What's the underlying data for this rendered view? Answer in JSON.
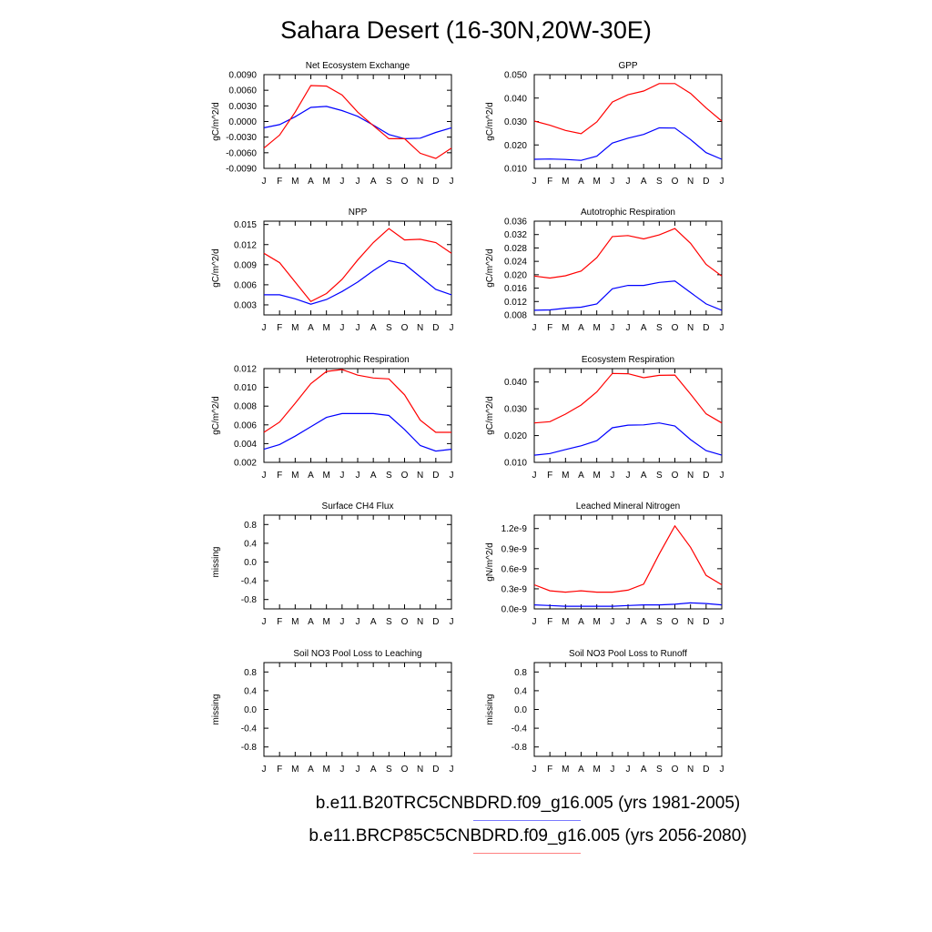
{
  "title": "Sahara Desert (16-30N,20W-30E)",
  "colors": {
    "run1": "#0000ff",
    "run2": "#ff0000"
  },
  "months": [
    "J",
    "F",
    "M",
    "A",
    "M",
    "J",
    "J",
    "A",
    "S",
    "O",
    "N",
    "D",
    "J"
  ],
  "legend": [
    {
      "label": "b.e11.B20TRC5CNBDRD.f09_g16.005 (yrs 1981-2005)",
      "color": "#7b7bff"
    },
    {
      "label": "b.e11.BRCP85C5CNBDRD.f09_g16.005 (yrs 2056-2080)",
      "color": "#ff8080"
    }
  ],
  "chart_data": [
    {
      "type": "line",
      "title": "Net Ecosystem Exchange",
      "ylabel": "gC/m^2/d",
      "ylim": [
        -0.009,
        0.009
      ],
      "yticks": [
        "0.0090",
        "0.0060",
        "0.0030",
        "0.0000",
        "-0.0030",
        "-0.0060",
        "-0.0090"
      ],
      "ytick_values": [
        0.009,
        0.006,
        0.003,
        0.0,
        -0.003,
        -0.006,
        -0.009
      ],
      "series": [
        {
          "values": [
            -0.0012,
            -0.0006,
            0.0009,
            0.0027,
            0.0029,
            0.0021,
            0.001,
            -0.0007,
            -0.0025,
            -0.0033,
            -0.0032,
            -0.0021,
            -0.0012
          ]
        },
        {
          "values": [
            -0.0051,
            -0.0026,
            0.0018,
            0.0069,
            0.0068,
            0.0051,
            0.0018,
            -0.0008,
            -0.0033,
            -0.0033,
            -0.0061,
            -0.0071,
            -0.0051
          ]
        }
      ]
    },
    {
      "type": "line",
      "title": "GPP",
      "ylabel": "gC/m^2/d",
      "ylim": [
        0.01,
        0.05
      ],
      "yticks": [
        "0.050",
        "0.040",
        "0.030",
        "0.020",
        "0.010"
      ],
      "ytick_values": [
        0.05,
        0.04,
        0.03,
        0.02,
        0.01
      ],
      "series": [
        {
          "values": [
            0.0139,
            0.014,
            0.0138,
            0.0134,
            0.0152,
            0.0208,
            0.0229,
            0.0245,
            0.0273,
            0.0272,
            0.0223,
            0.0167,
            0.0139
          ]
        },
        {
          "values": [
            0.0302,
            0.0284,
            0.0262,
            0.0248,
            0.0298,
            0.0383,
            0.0414,
            0.043,
            0.0462,
            0.0462,
            0.042,
            0.0358,
            0.0302
          ]
        }
      ]
    },
    {
      "type": "line",
      "title": "NPP",
      "ylabel": "gC/m^2/d",
      "ylim": [
        0.0015,
        0.0155
      ],
      "yticks": [
        "0.015",
        "0.012",
        "0.009",
        "0.006",
        "0.003"
      ],
      "ytick_values": [
        0.015,
        0.012,
        0.009,
        0.006,
        0.003
      ],
      "series": [
        {
          "values": [
            0.0045,
            0.0045,
            0.0039,
            0.0031,
            0.0038,
            0.005,
            0.0064,
            0.0081,
            0.0096,
            0.0091,
            0.0072,
            0.0053,
            0.0045
          ]
        },
        {
          "values": [
            0.0107,
            0.0093,
            0.0064,
            0.0035,
            0.0047,
            0.0068,
            0.0097,
            0.0123,
            0.0144,
            0.0127,
            0.0128,
            0.0123,
            0.0107
          ]
        }
      ]
    },
    {
      "type": "line",
      "title": "Autotrophic Respiration",
      "ylabel": "gC/m^2/d",
      "ylim": [
        0.008,
        0.036
      ],
      "yticks": [
        "0.036",
        "0.032",
        "0.028",
        "0.024",
        "0.020",
        "0.016",
        "0.012",
        "0.008"
      ],
      "ytick_values": [
        0.036,
        0.032,
        0.028,
        0.024,
        0.02,
        0.016,
        0.012,
        0.008
      ],
      "series": [
        {
          "values": [
            0.0094,
            0.0095,
            0.01,
            0.0103,
            0.0113,
            0.0158,
            0.0168,
            0.0168,
            0.0177,
            0.0181,
            0.0147,
            0.0113,
            0.0094
          ]
        },
        {
          "values": [
            0.0196,
            0.019,
            0.0197,
            0.0211,
            0.0251,
            0.0314,
            0.0317,
            0.0307,
            0.0319,
            0.0338,
            0.0294,
            0.0231,
            0.0196
          ]
        }
      ]
    },
    {
      "type": "line",
      "title": "Heterotrophic Respiration",
      "ylabel": "gC/m^2/d",
      "ylim": [
        0.002,
        0.012
      ],
      "yticks": [
        "0.012",
        "0.010",
        "0.008",
        "0.006",
        "0.004",
        "0.002"
      ],
      "ytick_values": [
        0.012,
        0.01,
        0.008,
        0.006,
        0.004,
        0.002
      ],
      "series": [
        {
          "values": [
            0.0034,
            0.0039,
            0.0048,
            0.0058,
            0.0068,
            0.0072,
            0.0072,
            0.0072,
            0.007,
            0.0055,
            0.0038,
            0.0032,
            0.0034
          ]
        },
        {
          "values": [
            0.0052,
            0.0063,
            0.0083,
            0.0104,
            0.0117,
            0.0119,
            0.0113,
            0.011,
            0.0109,
            0.0092,
            0.0065,
            0.0052,
            0.0052
          ]
        }
      ]
    },
    {
      "type": "line",
      "title": "Ecosystem Respiration",
      "ylabel": "gC/m^2/d",
      "ylim": [
        0.01,
        0.045
      ],
      "yticks": [
        "0.040",
        "0.030",
        "0.020",
        "0.010"
      ],
      "ytick_values": [
        0.04,
        0.03,
        0.02,
        0.01
      ],
      "series": [
        {
          "values": [
            0.0127,
            0.0133,
            0.0148,
            0.0162,
            0.0181,
            0.0229,
            0.0239,
            0.024,
            0.0247,
            0.0236,
            0.0185,
            0.0144,
            0.0127
          ]
        },
        {
          "values": [
            0.0247,
            0.0252,
            0.028,
            0.0314,
            0.0363,
            0.0432,
            0.0431,
            0.0416,
            0.0425,
            0.0426,
            0.0355,
            0.0281,
            0.0247
          ]
        }
      ]
    },
    {
      "type": "line",
      "title": "Surface CH4 Flux",
      "ylabel": "missing",
      "ylim": [
        -1.0,
        1.0
      ],
      "yticks": [
        "0.8",
        "0.4",
        "0.0",
        "-0.4",
        "-0.8"
      ],
      "ytick_values": [
        0.8,
        0.4,
        0.0,
        -0.4,
        -0.8
      ],
      "series": []
    },
    {
      "type": "line",
      "title": "Leached Mineral Nitrogen",
      "ylabel": "gN/m^2/d",
      "ylim": [
        0.0,
        1.4
      ],
      "yticks": [
        "1.2e-9",
        "0.9e-9",
        "0.6e-9",
        "0.3e-9",
        "0.0e-9"
      ],
      "ytick_values": [
        1.2,
        0.9,
        0.6,
        0.3,
        0.0
      ],
      "series": [
        {
          "values": [
            0.06,
            0.05,
            0.04,
            0.04,
            0.04,
            0.04,
            0.05,
            0.06,
            0.06,
            0.07,
            0.09,
            0.08,
            0.06
          ]
        },
        {
          "values": [
            0.36,
            0.27,
            0.25,
            0.27,
            0.25,
            0.25,
            0.28,
            0.37,
            0.82,
            1.24,
            0.92,
            0.5,
            0.36
          ]
        }
      ]
    },
    {
      "type": "line",
      "title": "Soil NO3 Pool Loss to Leaching",
      "ylabel": "missing",
      "ylim": [
        -1.0,
        1.0
      ],
      "yticks": [
        "0.8",
        "0.4",
        "0.0",
        "-0.4",
        "-0.8"
      ],
      "ytick_values": [
        0.8,
        0.4,
        0.0,
        -0.4,
        -0.8
      ],
      "series": []
    },
    {
      "type": "line",
      "title": "Soil NO3 Pool Loss to Runoff",
      "ylabel": "missing",
      "ylim": [
        -1.0,
        1.0
      ],
      "yticks": [
        "0.8",
        "0.4",
        "0.0",
        "-0.4",
        "-0.8"
      ],
      "ytick_values": [
        0.8,
        0.4,
        0.0,
        -0.4,
        -0.8
      ],
      "series": []
    }
  ]
}
